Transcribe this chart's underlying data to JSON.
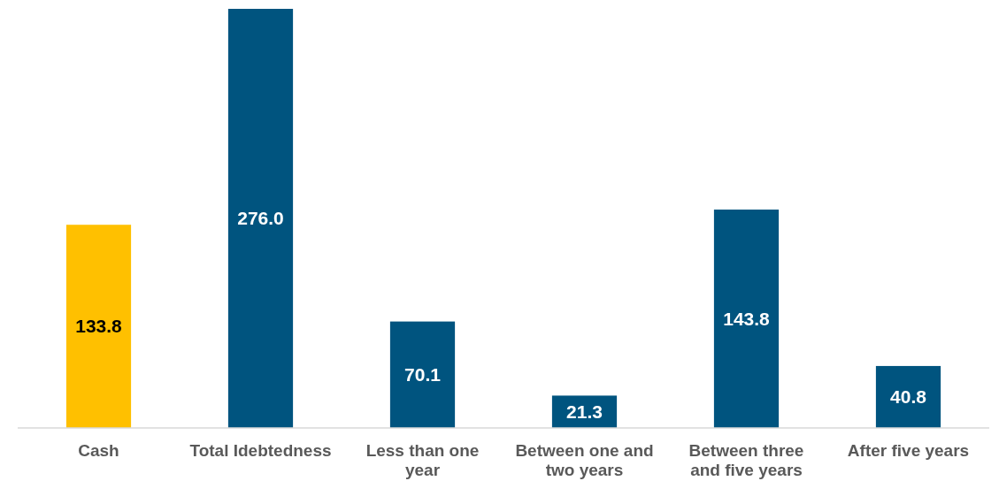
{
  "chart_data": {
    "type": "bar",
    "categories": [
      "Cash",
      "Total Idebtedness",
      "Less than one year",
      "Between one and two years",
      "Between three and five years",
      "After five years"
    ],
    "values": [
      133.8,
      276.0,
      70.1,
      21.3,
      143.8,
      40.8
    ],
    "colors": [
      "#ffc000",
      "#00547f",
      "#00547f",
      "#00547f",
      "#00547f",
      "#00547f"
    ],
    "value_labels": [
      "133.8",
      "276.0",
      "70.1",
      "21.3",
      "143.8",
      "40.8"
    ]
  }
}
